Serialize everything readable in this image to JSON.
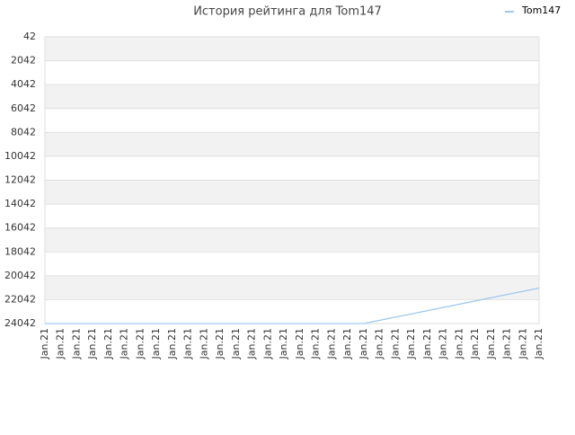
{
  "chart_data": {
    "type": "line",
    "title": "История рейтинга для Tom147",
    "categories": [
      "Jan.21",
      "Jan.21",
      "Jan.21",
      "Jan.21",
      "Jan.21",
      "Jan.21",
      "Jan.21",
      "Jan.21",
      "Jan.21",
      "Jan.21",
      "Jan.21",
      "Jan.21",
      "Jan.21",
      "Jan.21",
      "Jan.21",
      "Jan.21",
      "Jan.21",
      "Jan.21",
      "Jan.21",
      "Jan.21",
      "Jan.21",
      "Jan.21",
      "Jan.21",
      "Jan.21",
      "Jan.21",
      "Jan.21",
      "Jan.21",
      "Jan.21",
      "Jan.21",
      "Jan.21",
      "Jan.21",
      "Jan.21"
    ],
    "series": [
      {
        "name": "Tom147",
        "color": "#9cc9f0",
        "values": [
          24042,
          24042,
          24042,
          24042,
          24042,
          24042,
          24042,
          24042,
          24042,
          24042,
          24042,
          24042,
          24042,
          24042,
          24042,
          24042,
          24042,
          24042,
          24042,
          24042,
          24042,
          23770,
          23500,
          23230,
          22960,
          22690,
          22420,
          22150,
          21880,
          21610,
          21340,
          21070
        ]
      }
    ],
    "ylim": [
      24042,
      42
    ],
    "yticks": [
      42,
      2042,
      4042,
      6042,
      8042,
      10042,
      12042,
      14042,
      16042,
      18042,
      20042,
      22042,
      24042
    ],
    "grid": true,
    "bands": true,
    "legend": "top-right"
  }
}
